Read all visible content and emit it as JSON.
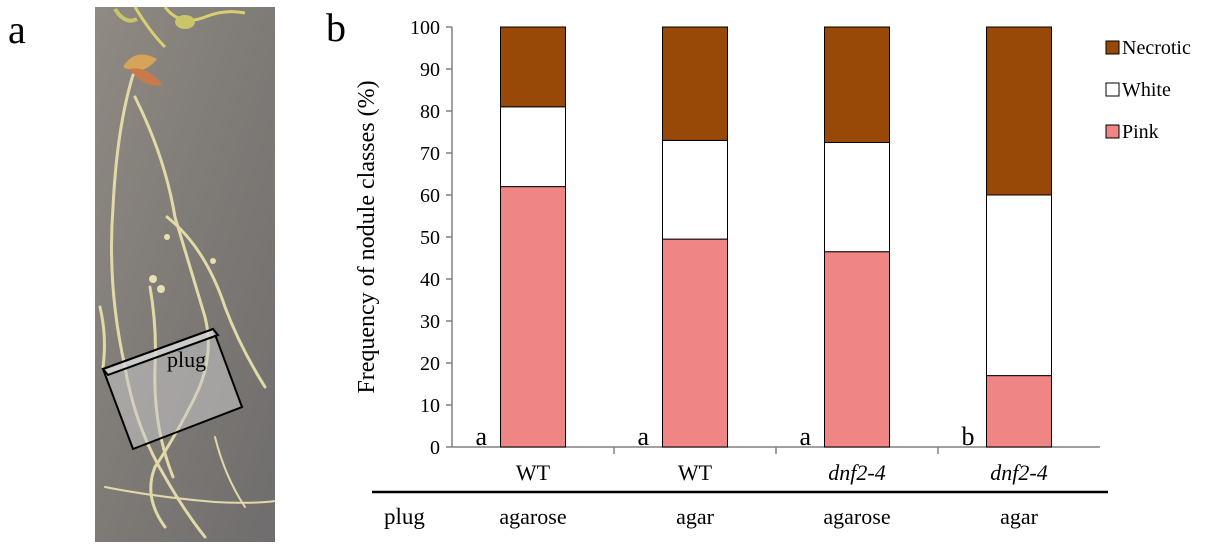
{
  "panel_labels": {
    "a": "a",
    "b": "b"
  },
  "photo": {
    "plug_label": "plug"
  },
  "chart_data": {
    "type": "bar",
    "stacked": true,
    "ylabel": "Frequency of nodule classes (%)",
    "ylim": [
      0,
      100
    ],
    "yticks": [
      0,
      10,
      20,
      30,
      40,
      50,
      60,
      70,
      80,
      90,
      100
    ],
    "grid": false,
    "legend_position": "top-right",
    "categories": [
      {
        "genotype": "WT",
        "genotype_italic": false,
        "plug": "agarose",
        "group": "a"
      },
      {
        "genotype": "WT",
        "genotype_italic": false,
        "plug": "agar",
        "group": "a"
      },
      {
        "genotype": "dnf2-4",
        "genotype_italic": true,
        "plug": "agarose",
        "group": "a"
      },
      {
        "genotype": "dnf2-4",
        "genotype_italic": true,
        "plug": "agar",
        "group": "b"
      }
    ],
    "row_label": "plug",
    "series": [
      {
        "name": "Pink",
        "color": "#F08585",
        "values": [
          62,
          49.5,
          46.5,
          17
        ]
      },
      {
        "name": "White",
        "color": "#FFFFFF",
        "values": [
          19,
          23.5,
          26,
          43
        ]
      },
      {
        "name": "Necrotic",
        "color": "#984807",
        "values": [
          19,
          27,
          27.5,
          40
        ]
      }
    ],
    "legend_order": [
      "Necrotic",
      "White",
      "Pink"
    ]
  }
}
